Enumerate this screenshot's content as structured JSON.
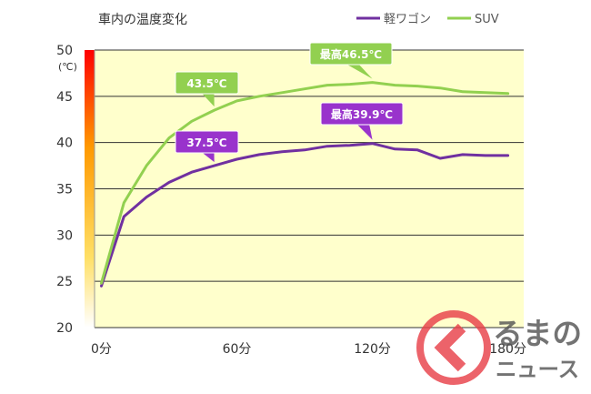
{
  "chart_data": {
    "type": "line",
    "title": "車内の温度変化",
    "y_unit": "(℃)",
    "x": [
      0,
      10,
      20,
      30,
      40,
      50,
      60,
      70,
      80,
      90,
      100,
      110,
      120,
      130,
      140,
      150,
      160,
      170,
      180
    ],
    "x_tick_values": [
      0,
      60,
      120,
      180
    ],
    "x_tick_labels": [
      "0分",
      "60分",
      "120分",
      "180分"
    ],
    "ylim": [
      20,
      50
    ],
    "xlim": [
      -3,
      187
    ],
    "y_ticks": [
      20,
      25,
      30,
      35,
      40,
      45,
      50
    ],
    "grid": true,
    "legend_position": "top-right",
    "series": [
      {
        "name": "軽ワゴン",
        "color": "#7030a0",
        "values": [
          24.5,
          32.0,
          34.1,
          35.7,
          36.8,
          37.5,
          38.2,
          38.7,
          39.0,
          39.2,
          39.6,
          39.7,
          39.9,
          39.3,
          39.2,
          38.3,
          38.7,
          38.6,
          38.6
        ]
      },
      {
        "name": "SUV",
        "color": "#92d050",
        "values": [
          24.8,
          33.5,
          37.5,
          40.5,
          42.3,
          43.5,
          44.5,
          45.0,
          45.4,
          45.8,
          46.2,
          46.3,
          46.5,
          46.2,
          46.1,
          45.9,
          45.5,
          45.4,
          45.3
        ]
      }
    ],
    "annotations": [
      {
        "text": "43.5℃",
        "series": 1,
        "x": 50,
        "y": 43.5,
        "color": "#92d050"
      },
      {
        "text": "最高46.5℃",
        "series": 1,
        "x": 120,
        "y": 46.5,
        "color": "#92d050"
      },
      {
        "text": "37.5℃",
        "series": 0,
        "x": 50,
        "y": 37.5,
        "color": "#9933cc"
      },
      {
        "text": "最高39.9℃",
        "series": 0,
        "x": 120,
        "y": 39.9,
        "color": "#9933cc"
      }
    ]
  },
  "colors": {
    "plot_background": "#ffffcc",
    "gridline": "#333333",
    "logo_red": "#e9414a"
  },
  "logo": {
    "line1": "るまの",
    "line2": "ニュース"
  }
}
